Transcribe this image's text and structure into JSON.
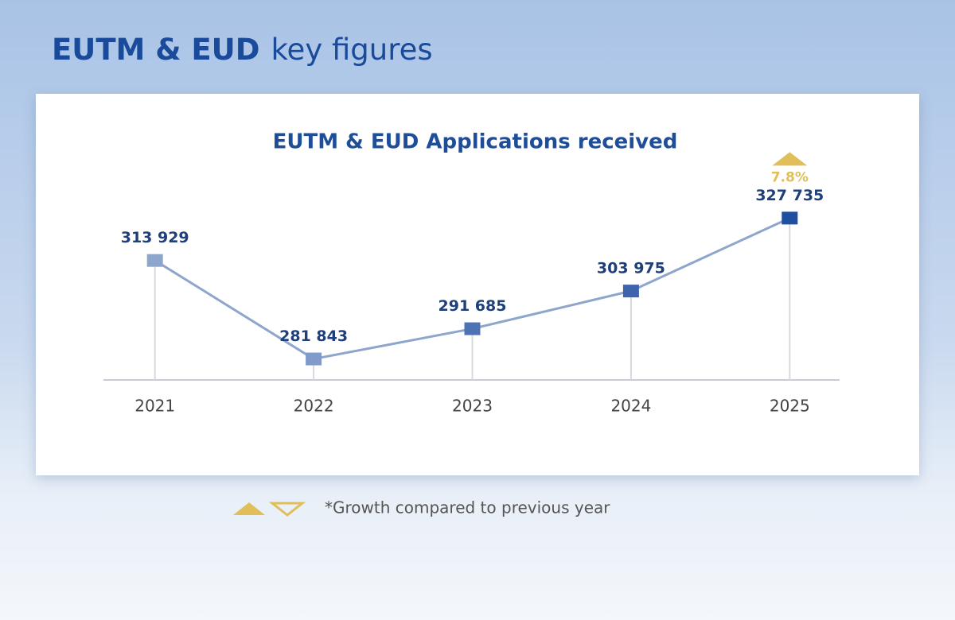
{
  "header": {
    "title_bold": "EUTM & EUD",
    "title_rest": "key figures"
  },
  "chart_data": {
    "type": "line",
    "title": "EUTM & EUD Applications received",
    "categories": [
      "2021",
      "2022",
      "2023",
      "2024",
      "2025"
    ],
    "values": [
      313929,
      281843,
      291685,
      303975,
      327735
    ],
    "value_labels": [
      "313 929",
      "281 843",
      "291 685",
      "303 975",
      "327 735"
    ],
    "line_color": "#8ea5cc",
    "marker_colors": [
      "#8ea5cc",
      "#7f9acb",
      "#4f72b3",
      "#3e64ad",
      "#1f4fa0"
    ],
    "ylim": [
      275000,
      340000
    ],
    "annotations": [
      {
        "x": "2025",
        "value": 7.8,
        "label": "7.8%",
        "color": "#e0bf5a"
      }
    ]
  },
  "footnote": "*Growth compared to previous year"
}
